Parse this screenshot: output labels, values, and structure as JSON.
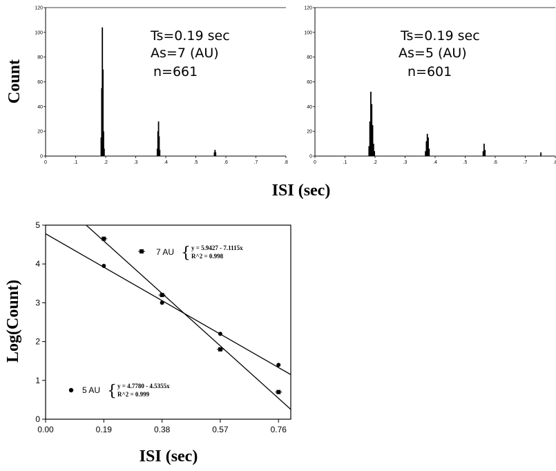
{
  "chart_data": [
    {
      "type": "bar",
      "ylabel": "Count",
      "annotations": [
        "Ts=0.19 sec",
        "As=7 (AU)",
        "n=661"
      ],
      "xticks": [
        "0",
        ".1",
        ".2",
        ".3",
        ".4",
        ".5",
        ".6",
        ".7",
        ".8"
      ],
      "yticks": [
        "0",
        "20",
        "40",
        "60",
        "80",
        "100",
        "120"
      ],
      "xlim": [
        0,
        0.8
      ],
      "ylim": [
        0,
        120
      ],
      "bars": [
        {
          "x": 0.185,
          "y": 15
        },
        {
          "x": 0.187,
          "y": 55
        },
        {
          "x": 0.189,
          "y": 104
        },
        {
          "x": 0.191,
          "y": 70
        },
        {
          "x": 0.193,
          "y": 20
        },
        {
          "x": 0.195,
          "y": 6
        },
        {
          "x": 0.372,
          "y": 6
        },
        {
          "x": 0.374,
          "y": 20
        },
        {
          "x": 0.376,
          "y": 28
        },
        {
          "x": 0.378,
          "y": 16
        },
        {
          "x": 0.38,
          "y": 5
        },
        {
          "x": 0.562,
          "y": 3
        },
        {
          "x": 0.564,
          "y": 5
        },
        {
          "x": 0.566,
          "y": 3
        }
      ]
    },
    {
      "type": "bar",
      "annotations": [
        "Ts=0.19 sec",
        "As=5 (AU)",
        "n=601"
      ],
      "xticks": [
        "0",
        ".1",
        ".2",
        ".3",
        ".4",
        ".5",
        ".6",
        ".7",
        ".8"
      ],
      "yticks": [
        "0",
        "20",
        "40",
        "60",
        "80",
        "100",
        "120"
      ],
      "xlim": [
        0,
        0.8
      ],
      "ylim": [
        0,
        120
      ],
      "bars": [
        {
          "x": 0.18,
          "y": 8
        },
        {
          "x": 0.183,
          "y": 28
        },
        {
          "x": 0.186,
          "y": 52
        },
        {
          "x": 0.189,
          "y": 42
        },
        {
          "x": 0.192,
          "y": 25
        },
        {
          "x": 0.195,
          "y": 10
        },
        {
          "x": 0.198,
          "y": 4
        },
        {
          "x": 0.368,
          "y": 4
        },
        {
          "x": 0.371,
          "y": 12
        },
        {
          "x": 0.374,
          "y": 18
        },
        {
          "x": 0.377,
          "y": 15
        },
        {
          "x": 0.38,
          "y": 6
        },
        {
          "x": 0.56,
          "y": 4
        },
        {
          "x": 0.563,
          "y": 10
        },
        {
          "x": 0.566,
          "y": 5
        },
        {
          "x": 0.752,
          "y": 3
        }
      ]
    },
    {
      "type": "scatter",
      "xlabel": "ISI (sec)",
      "ylabel": "Log(Count)",
      "xticks": [
        "0.00",
        "0.19",
        "0.38",
        "0.57",
        "0.76"
      ],
      "yticks": [
        "0",
        "1",
        "2",
        "3",
        "4",
        "5"
      ],
      "xlim": [
        0,
        0.8
      ],
      "ylim": [
        0,
        5
      ],
      "series": [
        {
          "name": "7 AU",
          "points": [
            [
              0.19,
              4.65
            ],
            [
              0.38,
              3.2
            ],
            [
              0.57,
              1.8
            ],
            [
              0.76,
              0.7
            ]
          ],
          "fit": {
            "intercept": 5.9427,
            "slope": -7.1115
          },
          "equation": "y = 5.9427 - 7.1115x",
          "r2": "R^2 = 0.998"
        },
        {
          "name": "5 AU",
          "points": [
            [
              0.19,
              3.95
            ],
            [
              0.38,
              3.0
            ],
            [
              0.57,
              2.2
            ],
            [
              0.76,
              1.4
            ]
          ],
          "fit": {
            "intercept": 4.778,
            "slope": -4.5355
          },
          "equation": "y = 4.7780 - 4.5355x",
          "r2": "R^2 = 0.999"
        }
      ]
    }
  ],
  "shared_xlabel": "ISI (sec)"
}
